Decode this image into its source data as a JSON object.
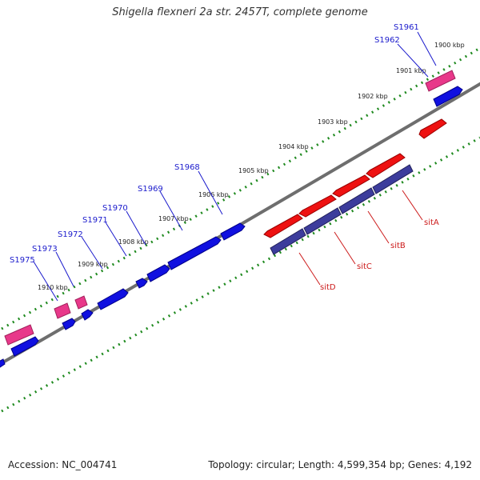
{
  "title": "Shigella flexneri 2a str. 2457T, complete genome",
  "accession_text": "Accession: NC_004741",
  "summary_text": "Topology: circular; Length: 4,599,354 bp; Genes: 4,192",
  "colors": {
    "backbone": "#7a7a7a",
    "tick_dots": "#1f8a1f",
    "gene_blue": "#1010e0",
    "gene_red": "#ee1111",
    "gene_pink": "#e8388a",
    "gene_purple": "#3c3c9c",
    "label_blue": "#1a1acc",
    "label_red": "#cc1a1a"
  },
  "kbp_labels": [
    "1900 kbp",
    "1901 kbp",
    "1902 kbp",
    "1903 kbp",
    "1904 kbp",
    "1905 kbp",
    "1906 kbp",
    "1907 kbp",
    "1908 kbp",
    "1909 kbp",
    "1910 kbp"
  ],
  "forward_gene_labels": [
    "S1961",
    "S1962",
    "S1968",
    "S1969",
    "S1970",
    "S1971",
    "S1972",
    "S1973",
    "S1975"
  ],
  "reverse_gene_labels": [
    "sitA",
    "sitB",
    "sitC",
    "sitD"
  ]
}
